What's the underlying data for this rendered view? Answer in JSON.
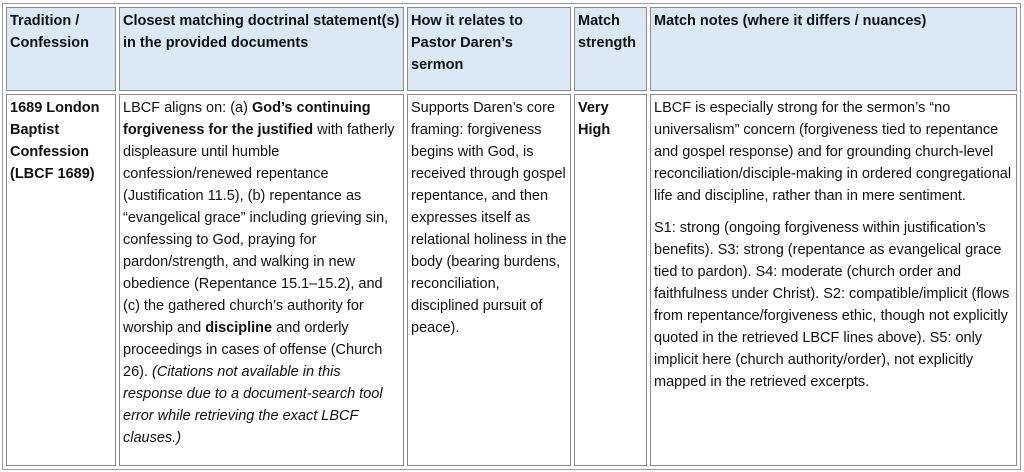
{
  "headers": [
    "Tradition / Confession",
    "Closest matching doctrinal statement(s) in the provided documents",
    "How it relates to Pastor Daren’s sermon",
    "Match strength",
    "Match notes (where it differs / nuances)"
  ],
  "row": {
    "tradition": "1689 London Baptist Confession (LBCF 1689)",
    "statement": [
      {
        "text": "LBCF aligns on: (a) ",
        "style": "normal"
      },
      {
        "text": "God’s continuing forgiveness for the justified",
        "style": "bold"
      },
      {
        "text": " with fatherly displeasure until humble confession/renewed repentance (Justification 11.5), (b) repentance as “evangelical grace” including grieving sin, confessing to God, praying for pardon/strength, and walking in new obedience (Repentance 15.1–15.2), and (c) the gathered church’s authority for worship and ",
        "style": "normal"
      },
      {
        "text": "discipline",
        "style": "bold"
      },
      {
        "text": " and orderly proceedings in cases of offense (Church 26). ",
        "style": "normal"
      },
      {
        "text": "(Citations not available in this response due to a document-search tool error while retrieving the exact LBCF clauses.)",
        "style": "italic"
      }
    ],
    "relation": "Supports Daren’s core framing: forgiveness begins with God, is received through gospel repentance, and then expresses itself as relational holiness in the body (bearing burdens, reconciliation, disciplined pursuit of peace).",
    "strength": "Very High",
    "notes": [
      "LBCF is especially strong for the sermon’s “no universalism” concern (forgiveness tied to repentance and gospel response) and for grounding church-level reconciliation/disciple-making in ordered congregational life and discipline, rather than in mere sentiment.",
      "S1: strong (ongoing forgiveness within justification’s benefits). S3: strong (repentance as evangelical grace tied to pardon). S4: moderate (church order and faithfulness under Christ). S2: compatible/implicit (flows from repentance/forgiveness ethic, though not explicitly quoted in the retrieved LBCF lines above). S5: only implicit here (church authority/order), not explicitly mapped in the retrieved excerpts."
    ]
  },
  "colors": {
    "header_bg": "#dbe8f6",
    "border": "#8a8a8a"
  }
}
